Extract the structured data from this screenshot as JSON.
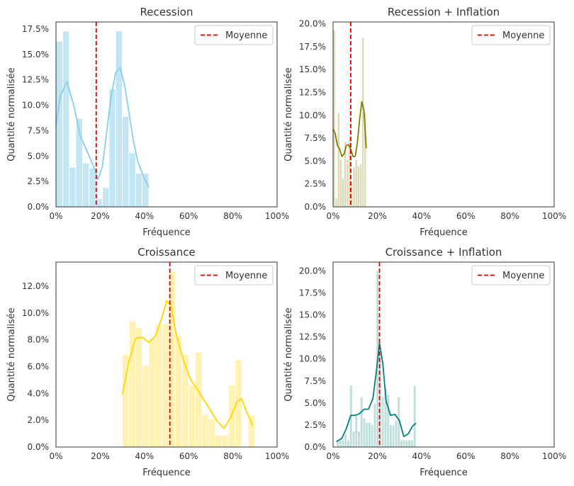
{
  "chart_data": [
    {
      "type": "histogram",
      "title": "Recession",
      "xlabel": "Fréquence",
      "ylabel": "Quantité normalisée",
      "xlim": [
        0,
        100
      ],
      "ylim": [
        0,
        18.2
      ],
      "xticks": [
        "0%",
        "20%",
        "40%",
        "60%",
        "80%",
        "100%"
      ],
      "xtick_values": [
        0,
        20,
        40,
        60,
        80,
        100
      ],
      "yticks": [
        "0.0%",
        "2.5%",
        "5.0%",
        "7.5%",
        "10.0%",
        "12.5%",
        "15.0%",
        "17.5%"
      ],
      "ytick_values": [
        0,
        2.5,
        5,
        7.5,
        10,
        12.5,
        15,
        17.5
      ],
      "bin_width": 3.0,
      "bin_starts": [
        0,
        3,
        6,
        9,
        12,
        15,
        18,
        21,
        24,
        27,
        30,
        33,
        36,
        39
      ],
      "values": [
        16.3,
        17.3,
        3.9,
        8.7,
        4.3,
        3.8,
        0.8,
        1.9,
        11.6,
        17.3,
        8.9,
        5.3,
        3.3,
        3.3
      ],
      "kde_x": [
        0,
        2,
        5,
        8,
        11,
        14,
        17,
        19,
        21,
        23,
        25,
        27,
        29,
        31,
        33,
        35,
        37,
        39,
        42
      ],
      "kde_y": [
        8.0,
        11.0,
        12.3,
        10.0,
        7.0,
        5.5,
        4.0,
        2.7,
        4.0,
        7.5,
        10.9,
        13.2,
        13.7,
        12.0,
        9.3,
        6.5,
        4.5,
        3.3,
        1.9
      ],
      "mean": 18.2,
      "bar_color": "#87ceeb",
      "line_color": "#87ceeb",
      "legend": "Moyenne",
      "mean_color": "#dd0000"
    },
    {
      "type": "histogram",
      "title": "Recession + Inflation",
      "xlabel": "Fréquence",
      "ylabel": "Quantité normalisée",
      "xlim": [
        0,
        100
      ],
      "ylim": [
        0,
        20.2
      ],
      "xticks": [
        "0%",
        "20%",
        "40%",
        "60%",
        "80%",
        "100%"
      ],
      "xtick_values": [
        0,
        20,
        40,
        60,
        80,
        100
      ],
      "yticks": [
        "0.0%",
        "2.5%",
        "5.0%",
        "7.5%",
        "10.0%",
        "12.5%",
        "15.0%",
        "17.5%",
        "20.0%"
      ],
      "ytick_values": [
        0,
        2.5,
        5,
        7.5,
        10,
        12.5,
        15,
        17.5,
        20
      ],
      "bin_width": 1.0,
      "bin_starts": [
        0,
        1,
        2,
        3,
        4,
        5,
        6,
        7,
        8,
        9,
        10,
        11,
        12,
        13,
        14
      ],
      "values": [
        19.3,
        1.0,
        10.3,
        5.2,
        3.1,
        7.1,
        5.2,
        7.6,
        2.7,
        4.4,
        5.2,
        4.5,
        4.7,
        18.5,
        10.3
      ],
      "kde_x": [
        0,
        1,
        2,
        3,
        4,
        5,
        6,
        7,
        8,
        9,
        10,
        11,
        12,
        13,
        14,
        15
      ],
      "kde_y": [
        8.5,
        8.0,
        6.7,
        6.3,
        5.5,
        5.8,
        6.7,
        6.8,
        6.3,
        5.5,
        5.5,
        7.0,
        9.5,
        11.5,
        10.5,
        6.4
      ],
      "mean": 8.0,
      "bar_color": "#b8b46a",
      "line_color": "#808000",
      "legend": "Moyenne",
      "mean_color": "#dd0000"
    },
    {
      "type": "histogram",
      "title": "Croissance",
      "xlabel": "Fréquence",
      "ylabel": "Quantité normalisée",
      "xlim": [
        0,
        100
      ],
      "ylim": [
        0,
        13.8
      ],
      "xticks": [
        "0%",
        "20%",
        "40%",
        "60%",
        "80%",
        "100%"
      ],
      "xtick_values": [
        0,
        20,
        40,
        60,
        80,
        100
      ],
      "yticks": [
        "0.0%",
        "2.0%",
        "4.0%",
        "6.0%",
        "8.0%",
        "10.0%",
        "12.0%"
      ],
      "ytick_values": [
        0,
        2,
        4,
        6,
        8,
        10,
        12
      ],
      "bin_width": 3.0,
      "bin_starts": [
        30,
        33,
        36,
        39,
        42,
        45,
        48,
        51,
        54,
        57,
        60,
        63,
        66,
        69,
        72,
        75,
        78,
        81,
        84,
        87
      ],
      "values": [
        6.9,
        9.4,
        8.9,
        6.1,
        8.1,
        9.2,
        9.2,
        13.1,
        8.3,
        6.9,
        4.6,
        7.1,
        2.4,
        2.1,
        0.9,
        0.9,
        4.6,
        6.5,
        0.0,
        2.4
      ],
      "kde_x": [
        30,
        33,
        36,
        39,
        42,
        45,
        48,
        50,
        52,
        54,
        56,
        58,
        61,
        64,
        67,
        70,
        73,
        76,
        79,
        82,
        84,
        86,
        89
      ],
      "kde_y": [
        3.9,
        6.4,
        8.1,
        8.2,
        7.8,
        8.3,
        9.7,
        10.9,
        10.6,
        8.7,
        7.4,
        6.3,
        5.0,
        4.3,
        3.5,
        2.7,
        1.9,
        1.4,
        2.2,
        3.4,
        3.6,
        2.7,
        1.6
      ],
      "mean": 51.5,
      "bar_color": "#ffe566",
      "line_color": "#ffd700",
      "legend": "Moyenne",
      "mean_color": "#dd0000"
    },
    {
      "type": "histogram",
      "title": "Croissance + Inflation",
      "xlabel": "Fréquence",
      "ylabel": "Quantité normalisée",
      "xlim": [
        0,
        100
      ],
      "ylim": [
        0,
        21.0
      ],
      "xticks": [
        "0%",
        "20%",
        "40%",
        "60%",
        "80%",
        "100%"
      ],
      "xtick_values": [
        0,
        20,
        40,
        60,
        80,
        100
      ],
      "yticks": [
        "0.0%",
        "2.5%",
        "5.0%",
        "7.5%",
        "10.0%",
        "12.5%",
        "15.0%",
        "17.5%",
        "20.0%"
      ],
      "ytick_values": [
        0,
        2.5,
        5,
        7.5,
        10,
        12.5,
        15,
        17.5,
        20
      ],
      "bin_width": 1.2,
      "bin_starts": [
        1.5,
        2.7,
        3.9,
        5.1,
        6.3,
        7.5,
        8.7,
        9.9,
        11.1,
        12.3,
        13.5,
        14.7,
        15.9,
        17.1,
        18.3,
        19.5,
        20.7,
        21.9,
        23.1,
        24.3,
        25.5,
        26.7,
        27.9,
        29.1,
        30.3,
        31.5,
        32.7,
        33.9,
        35.1,
        36.3
      ],
      "values": [
        0.8,
        0.8,
        0.8,
        1.5,
        0.8,
        7.0,
        1.8,
        3.5,
        1.8,
        5.7,
        3.3,
        2.8,
        2.8,
        2.5,
        5.0,
        20.0,
        10.8,
        5.7,
        6.8,
        6.0,
        2.5,
        2.5,
        3.0,
        5.7,
        0.8,
        0.8,
        0.8,
        0.8,
        0.8,
        7.0
      ],
      "kde_x": [
        1.5,
        4,
        6,
        8,
        10,
        12,
        14,
        16,
        18,
        19.5,
        21,
        22.5,
        24,
        26,
        28,
        30,
        32,
        34,
        36,
        37.5
      ],
      "kde_y": [
        0.6,
        1.0,
        2.1,
        3.6,
        3.6,
        3.8,
        4.3,
        4.3,
        5.5,
        8.4,
        11.8,
        9.5,
        5.2,
        3.6,
        3.7,
        3.0,
        1.2,
        1.5,
        2.4,
        2.7
      ],
      "mean": 21.0,
      "bar_color": "#7fbfbb",
      "line_color": "#008080",
      "legend": "Moyenne",
      "mean_color": "#dd0000"
    }
  ]
}
